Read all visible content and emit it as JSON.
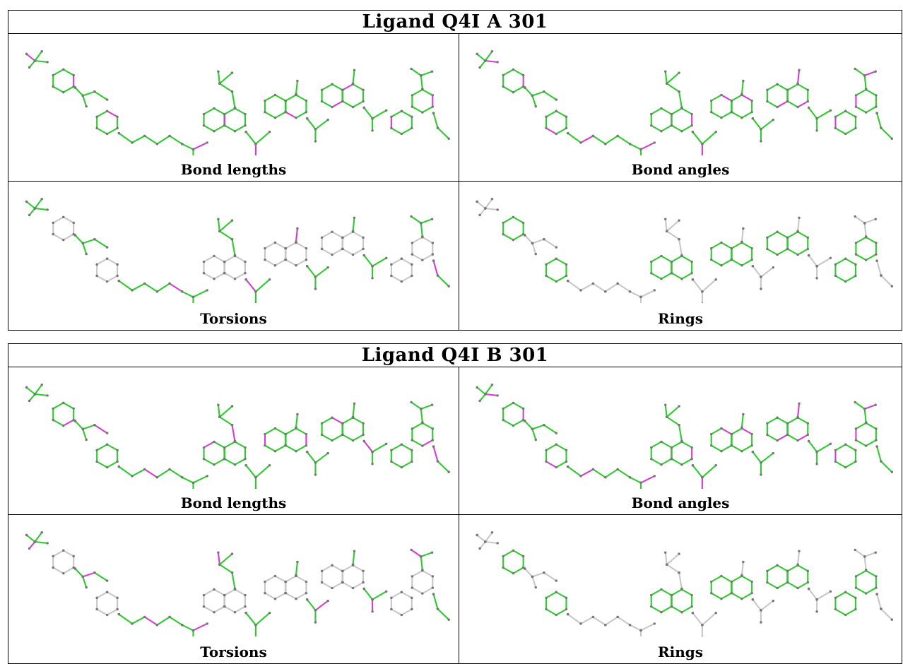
{
  "colors": {
    "pass": "#2ecc2e",
    "outlier": "#d23fd2",
    "neutral": "#c8c8c8",
    "atom": "#777777"
  },
  "panels": [
    {
      "title": "Ligand Q4I A 301",
      "cells": [
        {
          "caption": "Bond lengths",
          "mode": "lengths"
        },
        {
          "caption": "Bond angles",
          "mode": "angles"
        },
        {
          "caption": "Torsions",
          "mode": "torsions"
        },
        {
          "caption": "Rings",
          "mode": "rings"
        }
      ]
    },
    {
      "title": "Ligand Q4I B 301",
      "cells": [
        {
          "caption": "Bond lengths",
          "mode": "lengths"
        },
        {
          "caption": "Bond angles",
          "mode": "angles"
        },
        {
          "caption": "Torsions",
          "mode": "torsions"
        },
        {
          "caption": "Rings",
          "mode": "rings"
        }
      ]
    }
  ]
}
